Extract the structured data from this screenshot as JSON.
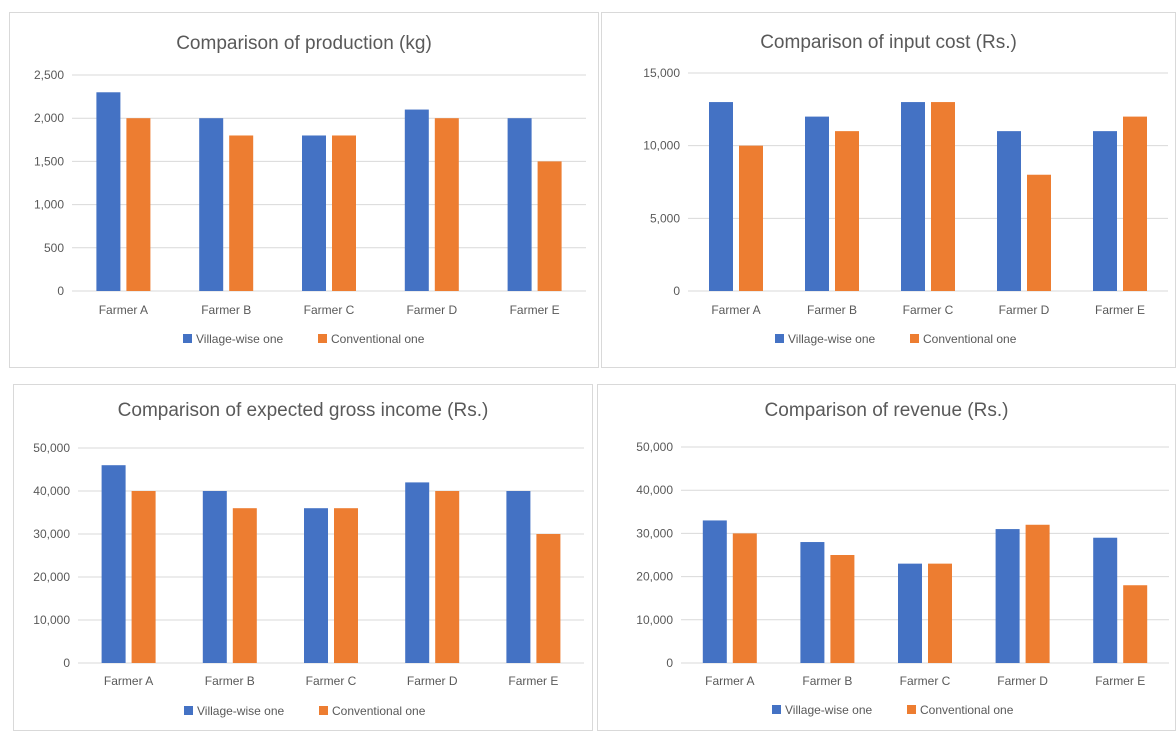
{
  "colors": {
    "series_1": "#4472c4",
    "series_2": "#ed7d31",
    "grid": "#d9d9d9",
    "text": "#595959"
  },
  "chart_data": [
    {
      "type": "bar",
      "title": "Comparison of production (kg)",
      "categories": [
        "Farmer A",
        "Farmer B",
        "Farmer C",
        "Farmer D",
        "Farmer E"
      ],
      "series": [
        {
          "name": "Village-wise one",
          "values": [
            2300,
            2000,
            1800,
            2100,
            2000
          ]
        },
        {
          "name": "Conventional one",
          "values": [
            2000,
            1800,
            1800,
            2000,
            1500
          ]
        }
      ],
      "yticks": [
        "0",
        "500",
        "1,000",
        "1,500",
        "2,000",
        "2,500"
      ],
      "ylim": [
        0,
        2500
      ],
      "grid": true,
      "legend": "bottom"
    },
    {
      "type": "bar",
      "title": "Comparison of input cost (Rs.)",
      "categories": [
        "Farmer A",
        "Farmer B",
        "Farmer C",
        "Farmer D",
        "Farmer E"
      ],
      "series": [
        {
          "name": "Village-wise one",
          "values": [
            13000,
            12000,
            13000,
            11000,
            11000
          ]
        },
        {
          "name": "Conventional one",
          "values": [
            10000,
            11000,
            13000,
            8000,
            12000
          ]
        }
      ],
      "yticks": [
        "0",
        "5,000",
        "10,000",
        "15,000"
      ],
      "ylim": [
        0,
        15000
      ],
      "grid": true,
      "legend": "bottom"
    },
    {
      "type": "bar",
      "title": "Comparison of expected gross income (Rs.)",
      "categories": [
        "Farmer A",
        "Farmer B",
        "Farmer C",
        "Farmer D",
        "Farmer E"
      ],
      "series": [
        {
          "name": "Village-wise one",
          "values": [
            46000,
            40000,
            36000,
            42000,
            40000
          ]
        },
        {
          "name": "Conventional one",
          "values": [
            40000,
            36000,
            36000,
            40000,
            30000
          ]
        }
      ],
      "yticks": [
        "0",
        "10,000",
        "20,000",
        "30,000",
        "40,000",
        "50,000"
      ],
      "ylim": [
        0,
        50000
      ],
      "grid": true,
      "legend": "bottom"
    },
    {
      "type": "bar",
      "title": "Comparison of revenue (Rs.)",
      "categories": [
        "Farmer A",
        "Farmer B",
        "Farmer C",
        "Farmer D",
        "Farmer E"
      ],
      "series": [
        {
          "name": "Village-wise one",
          "values": [
            33000,
            28000,
            23000,
            31000,
            29000
          ]
        },
        {
          "name": "Conventional one",
          "values": [
            30000,
            25000,
            23000,
            32000,
            18000
          ]
        }
      ],
      "yticks": [
        "0",
        "10,000",
        "20,000",
        "30,000",
        "40,000",
        "50,000"
      ],
      "ylim": [
        0,
        50000
      ],
      "grid": true,
      "legend": "bottom"
    }
  ]
}
